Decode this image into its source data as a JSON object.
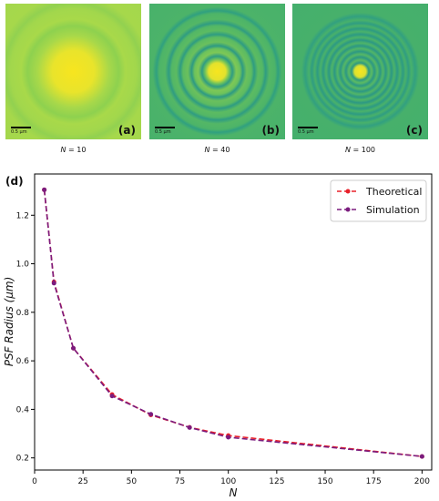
{
  "panels": [
    {
      "letter": "(a)",
      "scalebar": "0.5 μm",
      "caption_var": "N",
      "caption_rest": " = 10",
      "rings": 2
    },
    {
      "letter": "(b)",
      "scalebar": "0.5 μm",
      "caption_var": "N",
      "caption_rest": " = 40",
      "rings": 5
    },
    {
      "letter": "(c)",
      "scalebar": "0.5 μm",
      "caption_var": "N",
      "caption_rest": " = 100",
      "rings": 8
    }
  ],
  "colors": {
    "theoretical": "#e8202a",
    "simulation": "#7b1c7e",
    "psf_center": "#f7e51f",
    "psf_mid": "#9fd84a",
    "psf_dark": "#2aa77e"
  },
  "chart_data": {
    "type": "line",
    "panel_label": "(d)",
    "xlabel": "N",
    "ylabel": "PSF Radius (μm)",
    "xlim": [
      0,
      205
    ],
    "ylim": [
      0.15,
      1.37
    ],
    "xticks": [
      0,
      25,
      50,
      75,
      100,
      125,
      150,
      175,
      200
    ],
    "yticks": [
      0.2,
      0.4,
      0.6,
      0.8,
      1.0,
      1.2
    ],
    "ytick_labels": [
      "0.2",
      "0.4",
      "0.6",
      "0.8",
      "1.0",
      "1.2"
    ],
    "legend_position": "top-right",
    "series": [
      {
        "name": "Theoretical",
        "style": "dashed",
        "marker": "circle",
        "x": [
          5,
          10,
          20,
          40,
          60,
          80,
          100,
          200
        ],
        "y": [
          1.305,
          0.925,
          0.652,
          0.461,
          0.377,
          0.326,
          0.292,
          0.206
        ]
      },
      {
        "name": "Simulation",
        "style": "dashed",
        "marker": "circle",
        "x": [
          5,
          10,
          20,
          40,
          60,
          80,
          100,
          200
        ],
        "y": [
          1.305,
          0.92,
          0.652,
          0.455,
          0.38,
          0.325,
          0.285,
          0.206
        ]
      }
    ]
  }
}
